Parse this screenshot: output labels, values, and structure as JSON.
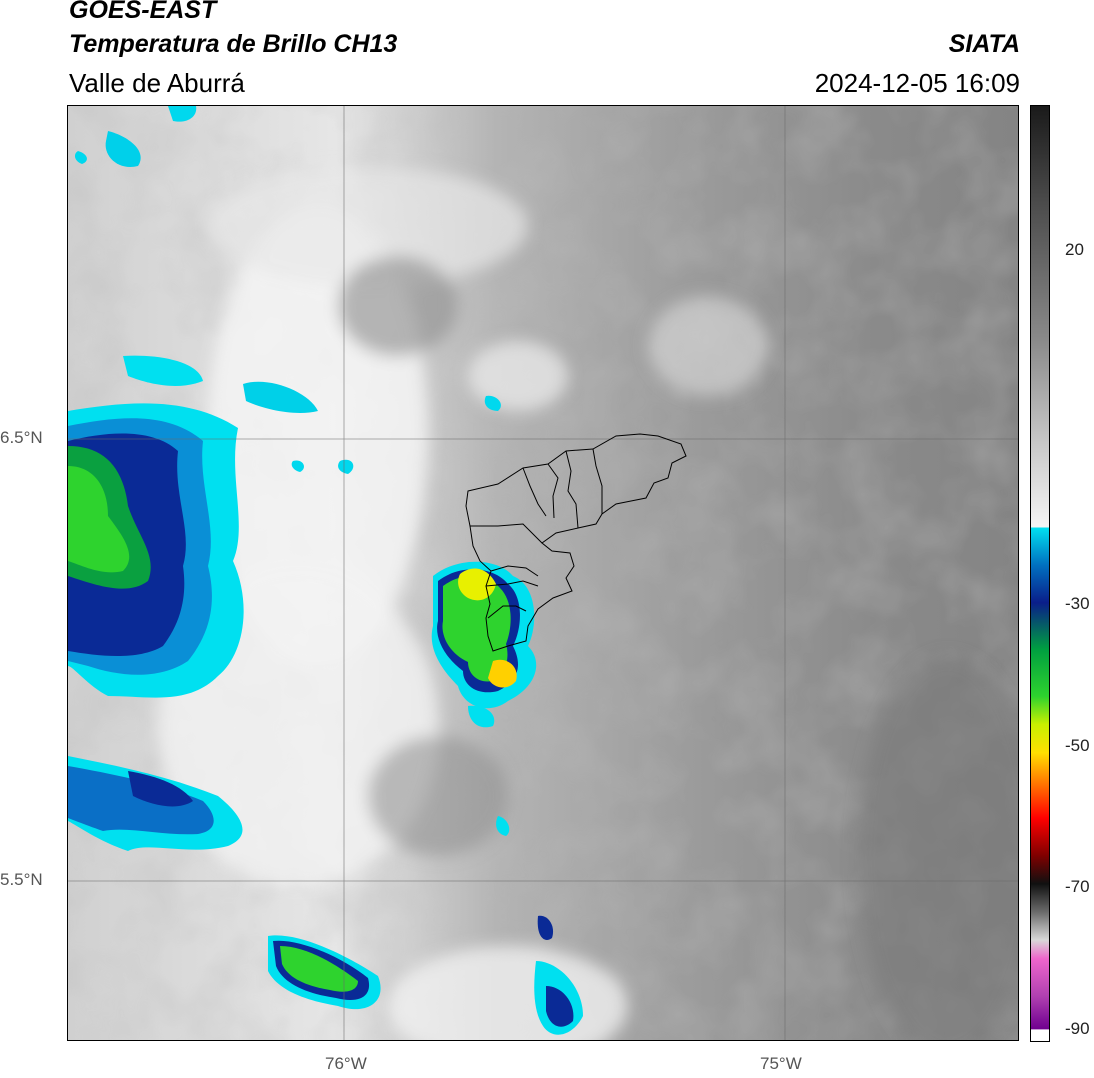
{
  "header": {
    "line1": "GOES-EAST",
    "line2": "Temperatura de Brillo CH13",
    "region": "Valle de Aburrá",
    "org": "SIATA",
    "timestamp": "2024-12-05 16:09"
  },
  "map": {
    "lat_labels": [
      "6.5°N",
      "5.5°N"
    ],
    "lon_labels": [
      "76°W",
      "75°W"
    ],
    "grid": true
  },
  "colorbar": {
    "tick_labels": [
      "20",
      "-30",
      "-50",
      "-70",
      "-90"
    ],
    "ramp": [
      [
        "#1a1a1a",
        0.0
      ],
      [
        "#4a4a4a",
        0.1
      ],
      [
        "#8a8a8a",
        0.25
      ],
      [
        "#c8c8c8",
        0.36
      ],
      [
        "#f5f5f5",
        0.45
      ],
      [
        "#00e0f0",
        0.45
      ],
      [
        "#0070c0",
        0.49
      ],
      [
        "#0a1e8a",
        0.53
      ],
      [
        "#00a040",
        0.58
      ],
      [
        "#2ed32e",
        0.63
      ],
      [
        "#c8f000",
        0.66
      ],
      [
        "#ffe000",
        0.69
      ],
      [
        "#ff8000",
        0.72
      ],
      [
        "#ff0000",
        0.76
      ],
      [
        "#800000",
        0.8
      ],
      [
        "#101010",
        0.83
      ],
      [
        "#6a6a6a",
        0.86
      ],
      [
        "#d8d8d8",
        0.89
      ],
      [
        "#ee66cc",
        0.91
      ],
      [
        "#b040b0",
        0.95
      ],
      [
        "#700090",
        0.985
      ],
      [
        "#ffffff",
        0.986
      ]
    ]
  }
}
